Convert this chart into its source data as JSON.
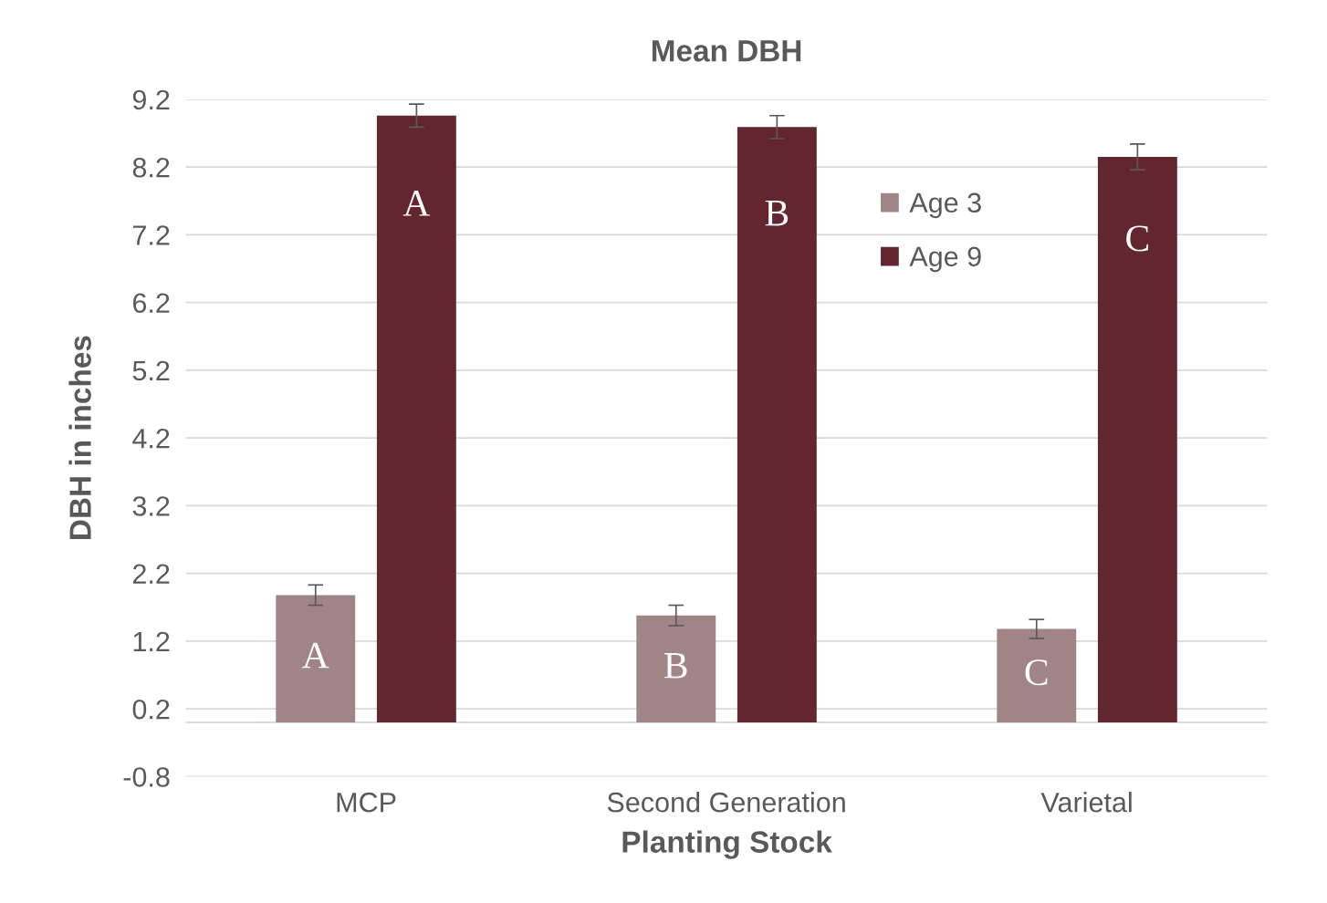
{
  "chart_data": {
    "type": "bar",
    "title": "Mean DBH",
    "xlabel": "Planting Stock",
    "ylabel": "DBH in inches",
    "categories": [
      "MCP",
      "Second Generation",
      "Varietal"
    ],
    "series": [
      {
        "name": "Age 3",
        "color": "#a08486",
        "values": [
          1.88,
          1.58,
          1.38
        ],
        "errors": [
          0.15,
          0.15,
          0.14
        ],
        "value_labels": [
          "A",
          "B",
          "C"
        ]
      },
      {
        "name": "Age 9",
        "color": "#63262e",
        "values": [
          8.96,
          8.79,
          8.35
        ],
        "errors": [
          0.17,
          0.17,
          0.19
        ],
        "value_labels": [
          "A",
          "B",
          "C"
        ]
      }
    ],
    "ylim": [
      -0.8,
      9.2
    ],
    "yticks": [
      -0.8,
      0.2,
      1.2,
      2.2,
      3.2,
      4.2,
      5.2,
      6.2,
      7.2,
      8.2,
      9.2
    ],
    "grid": "y",
    "legend": "top right"
  }
}
